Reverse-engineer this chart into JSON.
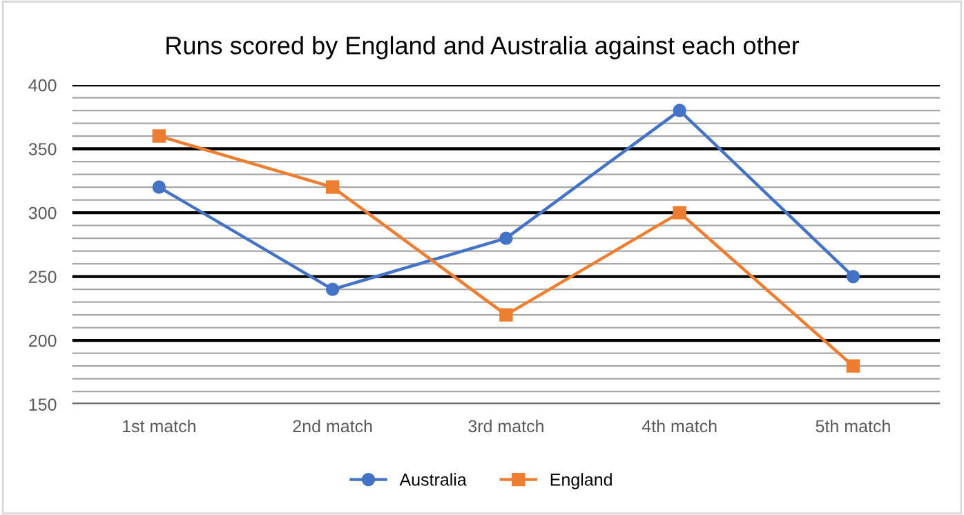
{
  "chart_data": {
    "type": "line",
    "title": "Runs scored by England and Australia against each other",
    "categories": [
      "1st match",
      "2nd match",
      "3rd match",
      "4th match",
      "5th match"
    ],
    "series": [
      {
        "name": "Australia",
        "color": "#4472c4",
        "marker": "circle",
        "values": [
          320,
          240,
          280,
          380,
          250
        ]
      },
      {
        "name": "England",
        "color": "#ed7d31",
        "marker": "square",
        "values": [
          360,
          320,
          220,
          300,
          180
        ]
      }
    ],
    "ylim": [
      150,
      400
    ],
    "yticks": [
      150,
      {
        "value": 160,
        "label": null
      },
      {
        "value": 170,
        "label": null
      },
      {
        "value": 180,
        "label": null
      },
      {
        "value": 190,
        "label": null
      },
      200,
      {
        "value": 210,
        "label": null
      },
      {
        "value": 220,
        "label": null
      },
      {
        "value": 230,
        "label": null
      },
      {
        "value": 240,
        "label": null
      },
      250,
      {
        "value": 260,
        "label": null
      },
      {
        "value": 270,
        "label": null
      },
      {
        "value": 280,
        "label": null
      },
      {
        "value": 290,
        "label": null
      },
      300,
      {
        "value": 310,
        "label": null
      },
      {
        "value": 320,
        "label": null
      },
      {
        "value": 330,
        "label": null
      },
      {
        "value": 340,
        "label": null
      },
      350,
      {
        "value": 360,
        "label": null
      },
      {
        "value": 370,
        "label": null
      },
      {
        "value": 380,
        "label": null
      },
      {
        "value": 390,
        "label": null
      },
      400
    ],
    "grid": "y",
    "legend": "bottom",
    "line_style": "solid"
  }
}
